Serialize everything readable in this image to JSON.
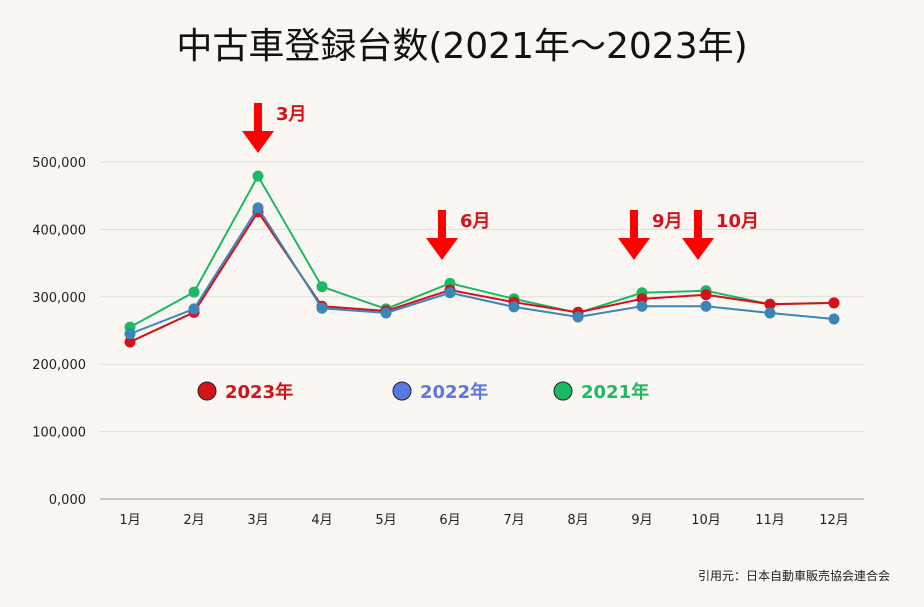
{
  "chart_data": {
    "type": "line",
    "title": "中古車登録台数(2021年〜2023年)",
    "categories": [
      "1月",
      "2月",
      "3月",
      "4月",
      "5月",
      "6月",
      "7月",
      "8月",
      "9月",
      "10月",
      "11月",
      "12月"
    ],
    "ylim": [
      0,
      500000
    ],
    "yticks": [
      0,
      100000,
      200000,
      300000,
      400000,
      500000
    ],
    "ytick_labels": [
      "0,000",
      "100,000",
      "200,000",
      "300,000",
      "400,000",
      "500,000"
    ],
    "grid": true,
    "series": [
      {
        "name": "2021年",
        "color": "#1db863",
        "values": [
          255000,
          307000,
          479000,
          315000,
          282000,
          320000,
          297000,
          276000,
          306000,
          309000,
          289000,
          291000
        ]
      },
      {
        "name": "2023年",
        "color": "#d3121a",
        "values": [
          233000,
          277000,
          426000,
          286000,
          279000,
          310000,
          292000,
          277000,
          297000,
          303000,
          289000,
          291000
        ]
      },
      {
        "name": "2022年",
        "color": "#3a86b8",
        "legend_color": "#5a78e0",
        "values": [
          245000,
          282000,
          432000,
          283000,
          276000,
          306000,
          285000,
          270000,
          286000,
          286000,
          276000,
          267000
        ]
      }
    ],
    "annotations": [
      {
        "category": "3月",
        "text": "3月"
      },
      {
        "category": "6月",
        "text": "6月"
      },
      {
        "category": "9月",
        "text": "9月"
      },
      {
        "category": "10月",
        "text": "10月"
      }
    ],
    "legend_order": [
      "2023年",
      "2022年",
      "2021年"
    ],
    "source": "引用元：日本自動車販売協会連合会"
  }
}
